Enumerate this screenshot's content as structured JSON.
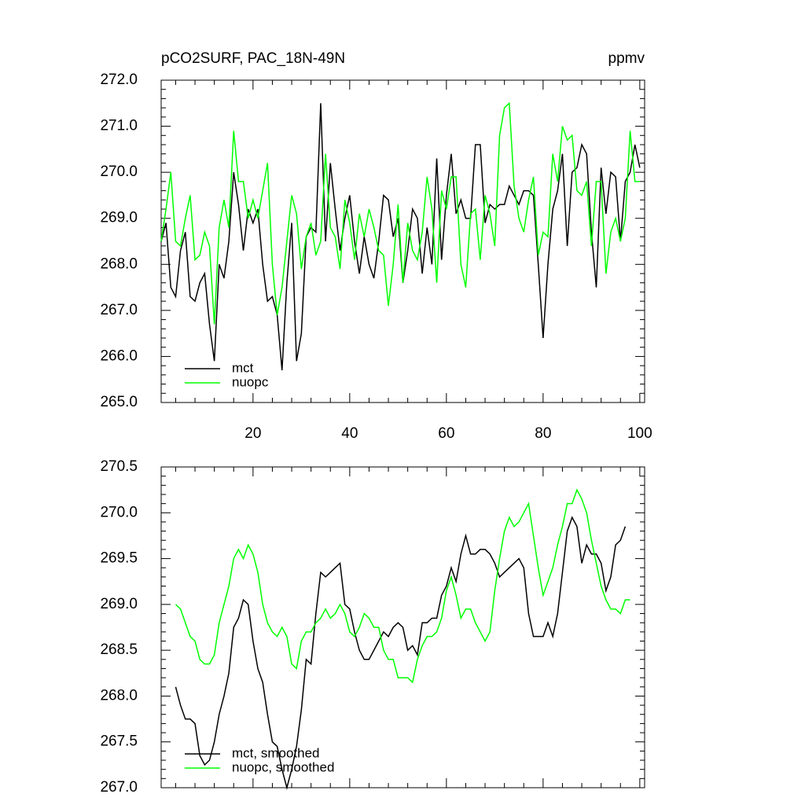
{
  "chart_data": [
    {
      "type": "line",
      "title": "pCO2SURF, PAC_18N-49N",
      "units": "ppmv",
      "x": [
        1,
        2,
        3,
        4,
        5,
        6,
        7,
        8,
        9,
        10,
        11,
        12,
        13,
        14,
        15,
        16,
        17,
        18,
        19,
        20,
        21,
        22,
        23,
        24,
        25,
        26,
        27,
        28,
        29,
        30,
        31,
        32,
        33,
        34,
        35,
        36,
        37,
        38,
        39,
        40,
        41,
        42,
        43,
        44,
        45,
        46,
        47,
        48,
        49,
        50,
        51,
        52,
        53,
        54,
        55,
        56,
        57,
        58,
        59,
        60,
        61,
        62,
        63,
        64,
        65,
        66,
        67,
        68,
        69,
        70,
        71,
        72,
        73,
        74,
        75,
        76,
        77,
        78,
        79,
        80,
        81,
        82,
        83,
        84,
        85,
        86,
        87,
        88,
        89,
        90,
        91,
        92,
        93,
        94,
        95,
        96,
        97,
        98,
        99,
        100
      ],
      "series": [
        {
          "name": "mct",
          "color": "#000000",
          "values": [
            268.5,
            268.9,
            267.5,
            267.3,
            268.3,
            268.7,
            267.3,
            267.2,
            267.6,
            267.8,
            266.7,
            265.9,
            268.0,
            267.7,
            268.5,
            270.0,
            269.3,
            268.3,
            269.2,
            268.9,
            269.2,
            268.0,
            267.2,
            267.3,
            266.9,
            265.7,
            267.6,
            268.9,
            265.9,
            266.5,
            268.6,
            268.8,
            268.7,
            271.5,
            268.5,
            270.2,
            269.2,
            268.3,
            269.0,
            269.5,
            268.5,
            267.8,
            268.6,
            268.0,
            267.7,
            268.5,
            269.5,
            269.4,
            268.6,
            269.0,
            267.6,
            268.3,
            269.2,
            269.0,
            267.8,
            268.8,
            268.0,
            270.3,
            268.1,
            269.5,
            270.4,
            269.1,
            269.4,
            269.0,
            269.0,
            270.6,
            270.6,
            268.9,
            269.3,
            269.2,
            269.3,
            269.3,
            269.7,
            269.5,
            269.3,
            269.6,
            269.6,
            269.5,
            268.0,
            266.4,
            268.0,
            269.2,
            269.6,
            270.4,
            268.4,
            270.0,
            270.1,
            270.6,
            270.4,
            268.7,
            267.5,
            270.1,
            269.1,
            270.0,
            269.9,
            268.5,
            269.8,
            270.0,
            270.6,
            270.1
          ]
        },
        {
          "name": "nuopc",
          "color": "#00ff00",
          "values": [
            268.5,
            269.2,
            270.0,
            268.5,
            268.4,
            269.0,
            269.5,
            268.1,
            268.2,
            268.7,
            268.4,
            266.7,
            268.8,
            269.4,
            268.8,
            270.9,
            269.8,
            269.8,
            269.0,
            269.4,
            269.0,
            269.6,
            270.2,
            268.0,
            266.9,
            267.5,
            268.5,
            269.5,
            269.1,
            267.9,
            268.6,
            268.9,
            268.2,
            268.5,
            270.4,
            268.8,
            268.6,
            267.9,
            269.4,
            268.9,
            268.1,
            269.1,
            268.6,
            269.2,
            268.8,
            268.3,
            268.2,
            267.1,
            268.0,
            269.3,
            267.6,
            268.9,
            268.3,
            268.1,
            268.7,
            269.9,
            269.2,
            267.6,
            269.6,
            269.2,
            269.9,
            269.9,
            268.0,
            267.5,
            269.1,
            269.2,
            268.1,
            269.5,
            269.1,
            268.4,
            270.8,
            271.4,
            271.5,
            269.7,
            269.0,
            268.7,
            269.4,
            269.9,
            268.2,
            268.7,
            268.6,
            270.4,
            269.8,
            271.0,
            270.7,
            270.8,
            269.6,
            269.5,
            269.8,
            268.4,
            269.8,
            269.8,
            267.8,
            268.7,
            269.0,
            268.5,
            269.0,
            270.9,
            269.8,
            269.8
          ]
        }
      ],
      "xlim": [
        1,
        101
      ],
      "xticks": [
        20,
        40,
        60,
        80,
        100
      ],
      "xtick_labels": true,
      "ylim": [
        265,
        272
      ],
      "yticks": [
        {
          "value": 265,
          "label": "265.0"
        },
        {
          "value": 266,
          "label": "266.0"
        },
        {
          "value": 267,
          "label": "267.0"
        },
        {
          "value": 268,
          "label": "268.0"
        },
        {
          "value": 269,
          "label": "269.0"
        },
        {
          "value": 270,
          "label": "270.0"
        },
        {
          "value": 271,
          "label": "271.0"
        },
        {
          "value": 272,
          "label": "272.0"
        }
      ],
      "legend": "lower left"
    },
    {
      "type": "line",
      "x": [
        1,
        2,
        3,
        4,
        5,
        6,
        7,
        8,
        9,
        10,
        11,
        12,
        13,
        14,
        15,
        16,
        17,
        18,
        19,
        20,
        21,
        22,
        23,
        24,
        25,
        26,
        27,
        28,
        29,
        30,
        31,
        32,
        33,
        34,
        35,
        36,
        37,
        38,
        39,
        40,
        41,
        42,
        43,
        44,
        45,
        46,
        47,
        48,
        49,
        50,
        51,
        52,
        53,
        54,
        55,
        56,
        57,
        58,
        59,
        60,
        61,
        62,
        63,
        64,
        65,
        66,
        67,
        68,
        69,
        70,
        71,
        72,
        73,
        74,
        75,
        76,
        77,
        78,
        79,
        80,
        81,
        82,
        83,
        84,
        85,
        86,
        87,
        88,
        89,
        90,
        91,
        92,
        93,
        94,
        95,
        96,
        97,
        98,
        99,
        100
      ],
      "series": [
        {
          "name": "mct, smoothed",
          "color": "#000000",
          "values": [
            null,
            null,
            null,
            268.1,
            267.9,
            267.75,
            267.75,
            267.7,
            267.35,
            267.25,
            267.3,
            267.5,
            267.8,
            268.0,
            268.25,
            268.75,
            268.85,
            269.05,
            269.0,
            268.6,
            268.3,
            268.15,
            267.8,
            267.5,
            267.45,
            267.2,
            267.0,
            267.2,
            267.45,
            267.85,
            268.4,
            268.35,
            268.9,
            269.35,
            269.3,
            269.35,
            269.4,
            269.45,
            269.0,
            268.95,
            268.7,
            268.5,
            268.4,
            268.4,
            268.5,
            268.6,
            268.7,
            268.65,
            268.75,
            268.8,
            268.75,
            268.5,
            268.55,
            268.45,
            268.8,
            268.8,
            268.85,
            268.85,
            269.1,
            269.2,
            269.4,
            269.25,
            269.55,
            269.75,
            269.55,
            269.55,
            269.6,
            269.6,
            269.55,
            269.45,
            269.3,
            269.35,
            269.4,
            269.45,
            269.5,
            269.4,
            268.9,
            268.65,
            268.65,
            268.65,
            268.8,
            268.65,
            268.9,
            269.35,
            269.8,
            269.95,
            269.85,
            269.45,
            269.65,
            269.55,
            269.55,
            269.45,
            269.15,
            269.3,
            269.65,
            269.7,
            269.85,
            null,
            null,
            null
          ]
        },
        {
          "name": "nuopc, smoothed",
          "color": "#00ff00",
          "values": [
            null,
            null,
            null,
            269.0,
            268.95,
            268.8,
            268.65,
            268.6,
            268.4,
            268.35,
            268.35,
            268.45,
            268.8,
            269.0,
            269.2,
            269.5,
            269.6,
            269.5,
            269.65,
            269.55,
            269.35,
            269.0,
            268.8,
            268.7,
            268.65,
            268.75,
            268.65,
            268.35,
            268.3,
            268.6,
            268.7,
            268.7,
            268.8,
            268.85,
            268.95,
            268.85,
            268.9,
            269.0,
            268.9,
            268.7,
            268.65,
            268.75,
            268.9,
            268.85,
            268.75,
            268.75,
            268.5,
            268.4,
            268.4,
            268.2,
            268.2,
            268.2,
            268.15,
            268.4,
            268.55,
            268.65,
            268.65,
            268.7,
            268.85,
            269.15,
            269.3,
            269.1,
            268.85,
            268.95,
            268.95,
            268.8,
            268.7,
            268.6,
            268.7,
            269.15,
            269.5,
            269.8,
            269.95,
            269.85,
            269.9,
            270.0,
            270.1,
            269.75,
            269.4,
            269.1,
            269.25,
            269.4,
            269.65,
            269.85,
            270.1,
            270.1,
            270.25,
            270.15,
            270.0,
            269.7,
            269.45,
            269.2,
            269.05,
            268.95,
            268.95,
            268.9,
            269.05,
            269.05,
            null,
            null
          ]
        }
      ],
      "xlim": [
        1,
        101
      ],
      "xticks": [
        20,
        40,
        60,
        80,
        100
      ],
      "xtick_labels": false,
      "ylim": [
        267,
        270.5
      ],
      "yticks": [
        {
          "value": 267,
          "label": "267.0"
        },
        {
          "value": 267.5,
          "label": "267.5"
        },
        {
          "value": 268,
          "label": "268.0"
        },
        {
          "value": 268.5,
          "label": "268.5"
        },
        {
          "value": 269,
          "label": "269.0"
        },
        {
          "value": 269.5,
          "label": "269.5"
        },
        {
          "value": 270,
          "label": "270.0"
        },
        {
          "value": 270.5,
          "label": "270.5"
        }
      ],
      "legend": "lower left"
    }
  ]
}
